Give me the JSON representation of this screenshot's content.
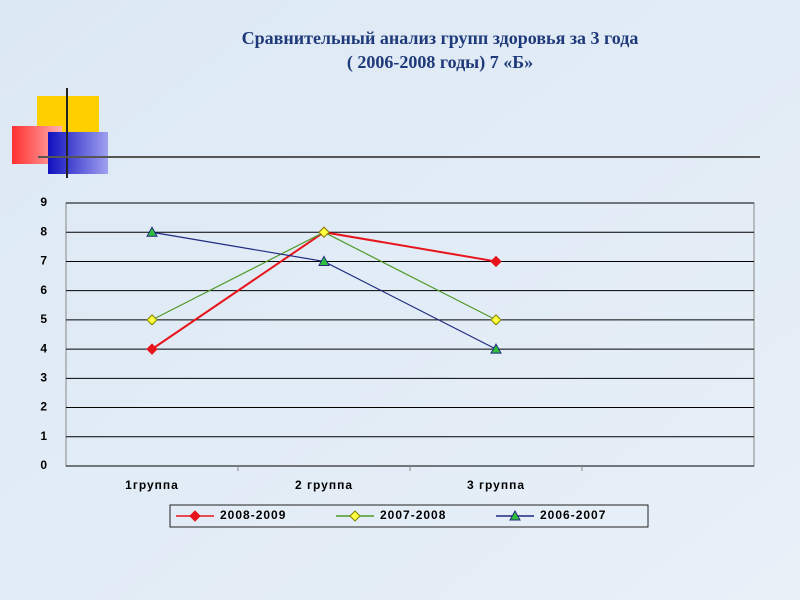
{
  "chart_data": {
    "type": "line",
    "title": "Сравнительный анализ групп здоровья за 3 года",
    "subtitle": "( 2006-2008 годы) 7 «Б»",
    "categories": [
      "1группа",
      "2 группа",
      "3 группа",
      null
    ],
    "series": [
      {
        "name": "2008-2009",
        "color": "#e8141c",
        "marker": "diamond",
        "marker_color": "#e8141c",
        "values": [
          4,
          8,
          7,
          null
        ]
      },
      {
        "name": "2007-2008",
        "color": "#4f9a2a",
        "marker": "diamond",
        "marker_color": "#ffff40",
        "values": [
          5,
          8,
          5,
          null
        ]
      },
      {
        "name": "2006-2007",
        "color": "#1f2a80",
        "marker": "triangle",
        "marker_color": "#2fbf3a",
        "values": [
          8,
          7,
          4,
          null
        ]
      }
    ],
    "ylim": [
      0,
      9
    ],
    "yticks": [
      0,
      1,
      2,
      3,
      4,
      5,
      6,
      7,
      8,
      9
    ],
    "grid": true,
    "legend": "bottom"
  }
}
